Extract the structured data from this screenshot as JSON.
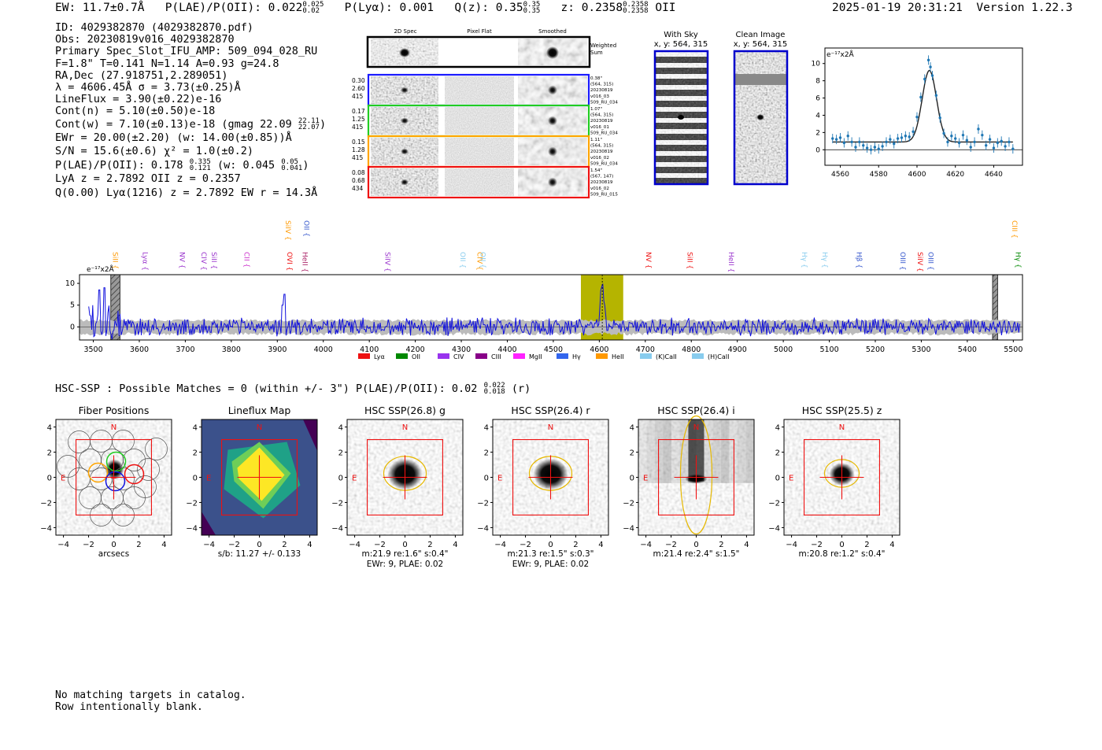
{
  "header": {
    "ew": "EW: 11.7±0.7Å",
    "plae_label": "P(LAE)/P(OII): 0.022",
    "plae_hi": "0.025",
    "plae_lo": "0.02",
    "plya": "P(Lyα): 0.001",
    "qz_label": "Q(z): 0.35",
    "qz_hi": "0.35",
    "qz_lo": "0.35",
    "z_label": "z: 0.2358",
    "z_hi": "0.2358",
    "z_lo": "0.2358",
    "z_line": "OII",
    "datetime": "2025-01-19 20:31:21",
    "version": "Version 1.22.3"
  },
  "info": {
    "id": "ID: 4029382870 (4029382870.pdf)",
    "obs": "Obs: 20230819v016_4029382870",
    "primary": "Primary Spec_Slot_IFU_AMP: 509_094_028_RU",
    "f": "F=1.8\"  T=0.141  N=1.14  A=0.93  g=24.8",
    "radec": "RA,Dec (27.918751,2.289051)",
    "lambda": "λ = 4606.45Å  σ = 3.73(±0.25)Å",
    "lineflux": "LineFlux = 3.90(±0.22)e-16",
    "contn": "Cont(n) = 5.10(±0.50)e-18",
    "contw": "Cont(w) = 7.10(±0.13)e-18 (gmag 22.09",
    "contw_hi": "22.11",
    "contw_lo": "22.07",
    "contw_end": ")",
    "ewr": "EWr = 20.00(±2.20) (w: 14.00(±0.85))Å",
    "sn": "S/N = 15.6(±0.6)  χ² = 1.0(±0.2)",
    "plae": "P(LAE)/P(OII): 0.178",
    "plae_hi": "0.335",
    "plae_lo": "0.121",
    "plae_w": "(w: 0.045",
    "plae_w_hi": "0.05",
    "plae_w_lo": "0.041",
    "plae_end": ")",
    "lya_z": "LyA z = 2.7892   OII z = 0.2357",
    "q": "Q(0.00) Lyα(1216) z = 2.7892  EW r = 14.3Å"
  },
  "cutouts": {
    "col_2d": "2D Spec",
    "col_flat": "Pixel Flat",
    "col_smooth": "Smoothed",
    "weighted": [
      "Weighted",
      "Sum"
    ],
    "rows": [
      {
        "nums": [
          "0.30",
          "2.60",
          "415"
        ],
        "meta": [
          "0.38\"",
          "(564, 315)",
          "20230819",
          "v016_03",
          "509_RU_034"
        ],
        "color": "#1a1aff"
      },
      {
        "nums": [
          "0.17",
          "1.25",
          "415"
        ],
        "meta": [
          "1.07\"",
          "(564, 315)",
          "20230819",
          "v016_01",
          "509_RU_034"
        ],
        "color": "#22cc22"
      },
      {
        "nums": [
          "0.15",
          "1.28",
          "415"
        ],
        "meta": [
          "1.11\"",
          "(564, 315)",
          "20230819",
          "v016_02",
          "509_RU_034"
        ],
        "color": "#ffa500"
      },
      {
        "nums": [
          "0.08",
          "0.68",
          "434"
        ],
        "meta": [
          "1.54\"",
          "(567, 147)",
          "20230819",
          "v016_02",
          "509_RU_015"
        ],
        "color": "#ee1111"
      }
    ]
  },
  "sky": {
    "with_sky_title": "With Sky",
    "with_sky_xy": "x, y: 564, 315",
    "clean_title": "Clean Image",
    "clean_xy": "x, y: 564, 315"
  },
  "chart_data": [
    {
      "type": "line",
      "title": "",
      "unit_label": "e⁻¹⁷x2Å",
      "xlim": [
        4552,
        4655
      ],
      "ylim": [
        -1.8,
        11.8
      ],
      "xticks": [
        4560,
        4580,
        4600,
        4620,
        4640
      ],
      "yticks": [
        0,
        2,
        4,
        6,
        8,
        10
      ],
      "fit": {
        "center": 4606.45,
        "sigma": 3.73,
        "amplitude": 8.3,
        "continuum": 0.9
      },
      "points": [
        [
          4556,
          1.3
        ],
        [
          4558,
          1.2
        ],
        [
          4560,
          1.4
        ],
        [
          4562,
          0.8
        ],
        [
          4564,
          1.6
        ],
        [
          4566,
          0.9
        ],
        [
          4568,
          0.3
        ],
        [
          4570,
          0.9
        ],
        [
          4572,
          0.5
        ],
        [
          4574,
          0.2
        ],
        [
          4576,
          0.0
        ],
        [
          4578,
          0.3
        ],
        [
          4580,
          0.1
        ],
        [
          4582,
          0.4
        ],
        [
          4584,
          0.9
        ],
        [
          4586,
          1.2
        ],
        [
          4588,
          0.7
        ],
        [
          4590,
          1.3
        ],
        [
          4592,
          1.4
        ],
        [
          4594,
          1.6
        ],
        [
          4596,
          1.5
        ],
        [
          4598,
          2.1
        ],
        [
          4600,
          3.8
        ],
        [
          4602,
          6.1
        ],
        [
          4604,
          8.2
        ],
        [
          4606,
          10.4
        ],
        [
          4607,
          9.6
        ],
        [
          4608,
          8.6
        ],
        [
          4610,
          6.3
        ],
        [
          4612,
          3.7
        ],
        [
          4614,
          1.9
        ],
        [
          4616,
          0.9
        ],
        [
          4618,
          1.6
        ],
        [
          4620,
          1.3
        ],
        [
          4622,
          0.8
        ],
        [
          4624,
          1.7
        ],
        [
          4626,
          1.1
        ],
        [
          4628,
          0.3
        ],
        [
          4630,
          0.9
        ],
        [
          4632,
          2.4
        ],
        [
          4634,
          1.7
        ],
        [
          4636,
          0.5
        ],
        [
          4638,
          1.2
        ],
        [
          4640,
          0.2
        ],
        [
          4642,
          0.8
        ],
        [
          4644,
          1.0
        ],
        [
          4646,
          0.4
        ],
        [
          4648,
          0.9
        ],
        [
          4650,
          0.1
        ]
      ]
    },
    {
      "type": "line",
      "unit_label": "e⁻¹⁷x2Å",
      "xlim": [
        3470,
        5520
      ],
      "ylim": [
        -3,
        12
      ],
      "xticks": [
        3500,
        3600,
        3700,
        3800,
        3900,
        4000,
        4100,
        4200,
        4300,
        4400,
        4500,
        4600,
        4700,
        4800,
        4900,
        5000,
        5100,
        5200,
        5300,
        5400,
        5500
      ],
      "yticks": [
        0,
        5,
        10
      ],
      "highlight_band": [
        4560,
        4652
      ],
      "masked_bands": [
        [
          3538,
          3558
        ],
        [
          5455,
          5466
        ]
      ],
      "peak": {
        "x": 4606.45,
        "y": 10.5
      },
      "spikes": [
        [
          3513,
          8.5
        ],
        [
          3524,
          9.0
        ],
        [
          3916,
          7.5
        ],
        [
          3912,
          5.0
        ]
      ],
      "line_labels": [
        {
          "name": "SiII",
          "x": 3538,
          "color": "#ff9900",
          "row": "low"
        },
        {
          "name": "Lyα",
          "x": 3603,
          "color": "#9933cc",
          "row": "low"
        },
        {
          "name": "NV",
          "x": 3683,
          "color": "#9933cc",
          "row": "low"
        },
        {
          "name": "CIV",
          "x": 3730,
          "color": "#9933cc",
          "row": "low"
        },
        {
          "name": "SiII",
          "x": 3752,
          "color": "#9933cc",
          "row": "low"
        },
        {
          "name": "CII",
          "x": 3823,
          "color": "#cc33cc",
          "row": "low"
        },
        {
          "name": "OVI",
          "x": 3917,
          "color": "#ee1111",
          "row": "low"
        },
        {
          "name": "HeII",
          "x": 3950,
          "color": "#aa2266",
          "row": "low"
        },
        {
          "name": "SiIV",
          "x": 3913,
          "color": "#ff9900",
          "row": "high"
        },
        {
          "name": "OII",
          "x": 3953,
          "color": "#3355cc",
          "row": "high"
        },
        {
          "name": "SiIV",
          "x": 4130,
          "color": "#9933cc",
          "row": "low"
        },
        {
          "name": "OII",
          "x": 4293,
          "color": "#88ccee",
          "row": "low"
        },
        {
          "name": "CIV",
          "x": 4330,
          "color": "#ff9900",
          "row": "low"
        },
        {
          "name": "OII",
          "x": 4337,
          "color": "#88ccee",
          "row": "low"
        },
        {
          "name": "NV",
          "x": 4697,
          "color": "#ee1111",
          "row": "low"
        },
        {
          "name": "SiII",
          "x": 4787,
          "color": "#ee1111",
          "row": "low"
        },
        {
          "name": "HeII",
          "x": 4877,
          "color": "#9933cc",
          "row": "low"
        },
        {
          "name": "Hγ",
          "x": 5036,
          "color": "#88ccee",
          "row": "low"
        },
        {
          "name": "Hγ",
          "x": 5080,
          "color": "#88ccee",
          "row": "low"
        },
        {
          "name": "Hβ",
          "x": 5155,
          "color": "#3355cc",
          "row": "low"
        },
        {
          "name": "OIII",
          "x": 5250,
          "color": "#3355cc",
          "row": "low"
        },
        {
          "name": "SiIV",
          "x": 5287,
          "color": "#ee1111",
          "row": "low"
        },
        {
          "name": "OIII",
          "x": 5310,
          "color": "#3355cc",
          "row": "low"
        },
        {
          "name": "Hγ",
          "x": 5500,
          "color": "#008800",
          "row": "low"
        },
        {
          "name": "CIII",
          "x": 5493,
          "color": "#ff9900",
          "row": "high"
        }
      ],
      "legend": [
        {
          "name": "Lyα",
          "color": "#ee1111"
        },
        {
          "name": "OII",
          "color": "#008800"
        },
        {
          "name": "CIV",
          "color": "#9933ee"
        },
        {
          "name": "CIII",
          "color": "#880088"
        },
        {
          "name": "MgII",
          "color": "#ff22ff"
        },
        {
          "name": "Hγ",
          "color": "#3366ee"
        },
        {
          "name": "HeII",
          "color": "#ff9900"
        },
        {
          "name": "(K)CaII",
          "color": "#88ccee"
        },
        {
          "name": "(H)CaII",
          "color": "#88ccee"
        }
      ]
    }
  ],
  "hsc": {
    "title": "HSC-SSP : Possible Matches = 0 (within +/- 3\")  P(LAE)/P(OII): 0.02",
    "hi": "0.022",
    "lo": "0.018",
    "band": "(r)"
  },
  "panels": [
    {
      "title": "Fiber Positions",
      "sub1": "arcsecs",
      "sub2": "",
      "kind": "fiber"
    },
    {
      "title": "Lineflux Map",
      "sub1": "s/b: 11.27 +/- 0.133",
      "sub2": "",
      "kind": "flux"
    },
    {
      "title": "HSC SSP(26.8) g",
      "sub1": "m:21.9  re:1.6\"  s:0.4\"",
      "sub2": "EWr: 9, PLAE: 0.02",
      "kind": "g"
    },
    {
      "title": "HSC SSP(26.4) r",
      "sub1": "m:21.3  re:1.5\"  s:0.3\"",
      "sub2": "EWr: 9, PLAE: 0.02",
      "kind": "r"
    },
    {
      "title": "HSC SSP(26.4) i",
      "sub1": "m:21.4  re:2.4\"  s:1.5\"",
      "sub2": "",
      "kind": "i"
    },
    {
      "title": "HSC SSP(25.5) z",
      "sub1": "m:20.8  re:1.2\"  s:0.4\"",
      "sub2": "",
      "kind": "z"
    }
  ],
  "panel_axis": {
    "ticks": [
      "−4",
      "−2",
      "0",
      "2",
      "4"
    ],
    "north": "N",
    "east": "E"
  },
  "footer": {
    "line1": "No matching targets in catalog.",
    "line2": "Row intentionally blank."
  }
}
